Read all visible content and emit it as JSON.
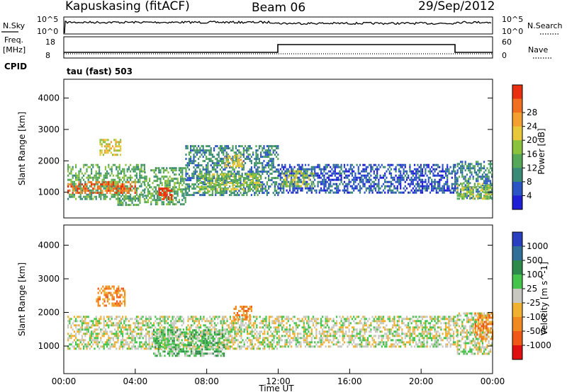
{
  "header": {
    "station": "Kapuskasing (fitACF)",
    "beam": "Beam 06",
    "date": "29/Sep/2012"
  },
  "noise_panel": {
    "left_label": "N.Sky",
    "right_label": "N.Search",
    "left_top": "10^5",
    "left_bottom": "10^0",
    "right_top": "10^5",
    "right_bottom": "10^0"
  },
  "freq_panel": {
    "left_label_1": "Freq.",
    "left_label_2": "[MHz]",
    "right_label": "Nave",
    "left_top": "18",
    "left_bottom": "8",
    "right_top": "60",
    "right_bottom": "0",
    "cpid_label": "CPID",
    "cpid_value": "tau (fast) 503"
  },
  "chart_data": [
    {
      "type": "heatmap",
      "name": "power",
      "ylabel": "Slant Range [km]",
      "xlabel": "",
      "ylim": [
        180,
        4600
      ],
      "xlim": [
        0,
        24
      ],
      "yticks": [
        "1000",
        "2000",
        "3000",
        "4000"
      ],
      "colorbar": {
        "label": "Power [dB]",
        "ticks": [
          "4",
          "8",
          "12",
          "16",
          "20",
          "24",
          "28"
        ],
        "colors": [
          "#1f1fd6",
          "#2b55c4",
          "#3a8a78",
          "#55a858",
          "#8ac23e",
          "#e8c838",
          "#f4a030",
          "#f07020",
          "#e83010"
        ]
      },
      "regions": [
        {
          "x": [
            0.2,
            4.5
          ],
          "y": [
            800,
            1900
          ],
          "level": 3
        },
        {
          "x": [
            0.2,
            4.0
          ],
          "y": [
            1000,
            1350
          ],
          "level": 7
        },
        {
          "x": [
            2.0,
            3.2
          ],
          "y": [
            2200,
            2700
          ],
          "level": 5
        },
        {
          "x": [
            3.0,
            4.3
          ],
          "y": [
            600,
            900
          ],
          "level": 3
        },
        {
          "x": [
            4.5,
            6.8
          ],
          "y": [
            600,
            1800
          ],
          "level": 3
        },
        {
          "x": [
            5.3,
            6.0
          ],
          "y": [
            800,
            1150
          ],
          "level": 8
        },
        {
          "x": [
            6.8,
            12.0
          ],
          "y": [
            900,
            2500
          ],
          "level": 2
        },
        {
          "x": [
            7.5,
            11.0
          ],
          "y": [
            1000,
            1600
          ],
          "level": 4
        },
        {
          "x": [
            9.0,
            10.0
          ],
          "y": [
            1800,
            2200
          ],
          "level": 5
        },
        {
          "x": [
            12.0,
            22.0
          ],
          "y": [
            1000,
            1900
          ],
          "level": 1
        },
        {
          "x": [
            12.2,
            14.0
          ],
          "y": [
            1200,
            1700
          ],
          "level": 4
        },
        {
          "x": [
            22.0,
            24.0
          ],
          "y": [
            800,
            2000
          ],
          "level": 2
        },
        {
          "x": [
            22.0,
            24.0
          ],
          "y": [
            800,
            1300
          ],
          "level": 4
        }
      ]
    },
    {
      "type": "heatmap",
      "name": "velocity",
      "ylabel": "Slant Range [km]",
      "xlabel": "Time UT",
      "ylim": [
        180,
        4600
      ],
      "xlim": [
        0,
        24
      ],
      "yticks": [
        "1000",
        "2000",
        "3000",
        "4000"
      ],
      "xticks": [
        "00:00",
        "04:00",
        "08:00",
        "12:00",
        "16:00",
        "20:00",
        "00:00"
      ],
      "colorbar": {
        "label": "Velocity [m s^-1]",
        "ticks": [
          "1000",
          "500",
          "100",
          "25",
          "-25",
          "-100",
          "-500",
          "-1000"
        ],
        "colors": [
          "#2a3fc0",
          "#2f6f98",
          "#2e8a4a",
          "#44c44a",
          "#c8c8c0",
          "#f0b030",
          "#f08a20",
          "#f05818",
          "#e01010"
        ]
      },
      "regions": [
        {
          "x": [
            0.2,
            12.0
          ],
          "y": [
            900,
            1900
          ],
          "level": 4
        },
        {
          "x": [
            5.0,
            9.0
          ],
          "y": [
            700,
            1500
          ],
          "level": 3
        },
        {
          "x": [
            1.8,
            3.4
          ],
          "y": [
            2200,
            2800
          ],
          "level": 6
        },
        {
          "x": [
            9.5,
            10.5
          ],
          "y": [
            1800,
            2200
          ],
          "level": 6
        },
        {
          "x": [
            12.0,
            22.0
          ],
          "y": [
            1000,
            1900
          ],
          "level": 4
        },
        {
          "x": [
            22.0,
            24.0
          ],
          "y": [
            800,
            2000
          ],
          "level": 4
        },
        {
          "x": [
            23.0,
            24.0
          ],
          "y": [
            1200,
            2000
          ],
          "level": 6
        }
      ]
    }
  ]
}
